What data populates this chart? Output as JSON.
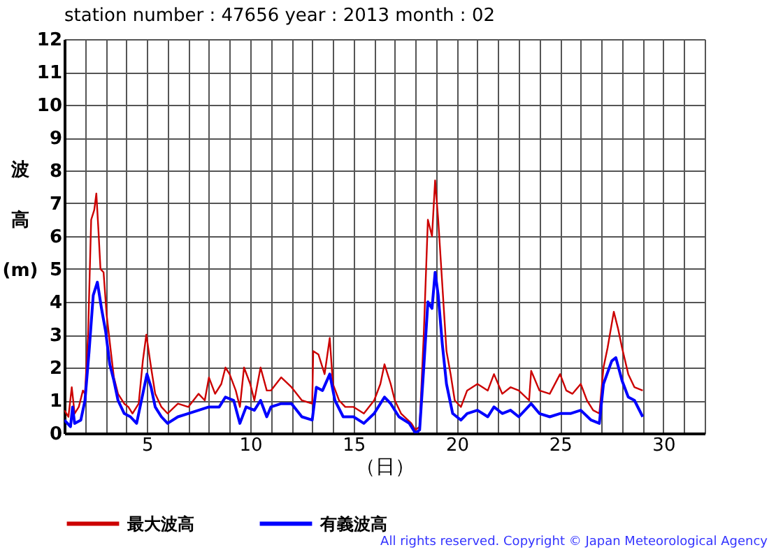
{
  "chart_data": {
    "type": "line",
    "title": "station number : 47656       year : 2013   month : 02",
    "xlabel": "（日）",
    "ylabel": "波高(m)",
    "xlim": [
      1,
      32
    ],
    "xticks": [
      {
        "value": 1,
        "label": null
      },
      {
        "value": 2,
        "label": null
      },
      {
        "value": 3,
        "label": null
      },
      {
        "value": 4,
        "label": null
      },
      5,
      {
        "value": 6,
        "label": null
      },
      {
        "value": 7,
        "label": null
      },
      {
        "value": 8,
        "label": null
      },
      {
        "value": 9,
        "label": null
      },
      10,
      {
        "value": 11,
        "label": null
      },
      {
        "value": 12,
        "label": null
      },
      {
        "value": 13,
        "label": null
      },
      {
        "value": 14,
        "label": null
      },
      15,
      {
        "value": 16,
        "label": null
      },
      {
        "value": 17,
        "label": null
      },
      {
        "value": 18,
        "label": null
      },
      {
        "value": 19,
        "label": null
      },
      20,
      {
        "value": 21,
        "label": null
      },
      {
        "value": 22,
        "label": null
      },
      {
        "value": 23,
        "label": null
      },
      {
        "value": 24,
        "label": null
      },
      25,
      {
        "value": 26,
        "label": null
      },
      {
        "value": 27,
        "label": null
      },
      {
        "value": 28,
        "label": null
      },
      {
        "value": 29,
        "label": null
      },
      30,
      {
        "value": 31,
        "label": null
      },
      {
        "value": 32,
        "label": null
      }
    ],
    "ylim": [
      0,
      12
    ],
    "yticks": [
      0,
      1,
      2,
      3,
      4,
      5,
      6,
      7,
      8,
      9,
      10,
      11,
      12
    ],
    "grid": true,
    "legend": "bottom",
    "line_style": "solid",
    "marker": "none",
    "annotations": [
      "All rights reserved. Copyright © Japan Meteorological Agency"
    ],
    "series": [
      {
        "name": "最大波高",
        "color": "#cc0000",
        "x": [
          1,
          1.2,
          1.36,
          1.5,
          1.7,
          1.9,
          2.0,
          2.15,
          2.3,
          2.45,
          2.55,
          2.65,
          2.75,
          2.9,
          3.05,
          3.25,
          3.4,
          3.6,
          3.9,
          4.1,
          4.3,
          4.6,
          4.8,
          4.97,
          5.2,
          5.4,
          5.7,
          6.0,
          6.5,
          7.0,
          7.5,
          7.8,
          8.0,
          8.3,
          8.6,
          8.8,
          9.0,
          9.3,
          9.5,
          9.7,
          10.0,
          10.2,
          10.5,
          10.8,
          11.0,
          11.5,
          12.0,
          12.5,
          13.0,
          13.05,
          13.3,
          13.6,
          13.85,
          14.0,
          14.3,
          14.6,
          15.0,
          15.5,
          16.0,
          16.3,
          16.5,
          16.8,
          17.0,
          17.3,
          17.8,
          18.0,
          18.2,
          18.4,
          18.6,
          18.8,
          18.95,
          19.1,
          19.3,
          19.5,
          19.7,
          19.9,
          20.2,
          20.5,
          21.0,
          21.5,
          21.8,
          22.2,
          22.6,
          23.0,
          23.5,
          23.6,
          24.0,
          24.5,
          25.0,
          25.3,
          25.6,
          26.0,
          26.3,
          26.6,
          26.9,
          27.1,
          27.3,
          27.6,
          27.8,
          28.0,
          28.3,
          28.6,
          29.0
        ],
        "values": [
          0.7,
          0.5,
          1.4,
          0.6,
          0.8,
          1.3,
          1.2,
          3.0,
          6.5,
          6.8,
          7.3,
          6.2,
          5.0,
          4.9,
          3.6,
          2.5,
          1.7,
          1.2,
          0.9,
          0.8,
          0.6,
          0.9,
          2.2,
          3.0,
          2.0,
          1.2,
          0.8,
          0.6,
          0.9,
          0.8,
          1.2,
          1.0,
          1.7,
          1.2,
          1.5,
          2.0,
          1.8,
          1.3,
          0.8,
          2.0,
          1.5,
          1.0,
          2.0,
          1.3,
          1.3,
          1.7,
          1.4,
          1.0,
          0.9,
          2.5,
          2.4,
          1.8,
          2.9,
          1.5,
          1.0,
          0.8,
          0.8,
          0.6,
          1.0,
          1.5,
          2.1,
          1.5,
          1.0,
          0.6,
          0.3,
          0.1,
          0.2,
          3.0,
          6.5,
          6.0,
          7.7,
          6.5,
          4.5,
          2.5,
          1.8,
          1.0,
          0.8,
          1.3,
          1.5,
          1.3,
          1.8,
          1.2,
          1.4,
          1.3,
          1.0,
          1.9,
          1.3,
          1.2,
          1.8,
          1.3,
          1.2,
          1.5,
          1.0,
          0.7,
          0.6,
          2.0,
          2.6,
          3.7,
          3.2,
          2.6,
          1.8,
          1.4,
          1.3
        ]
      },
      {
        "name": "有義波高",
        "color": "#0000ff",
        "x": [
          1,
          1.3,
          1.4,
          1.5,
          1.8,
          2.0,
          2.2,
          2.4,
          2.6,
          2.8,
          3.0,
          3.2,
          3.4,
          3.6,
          3.9,
          4.2,
          4.5,
          4.8,
          5.0,
          5.2,
          5.4,
          5.7,
          6.0,
          6.5,
          7.0,
          7.5,
          8.0,
          8.5,
          8.8,
          9.2,
          9.5,
          9.8,
          10.2,
          10.5,
          10.8,
          11.0,
          11.5,
          12.0,
          12.5,
          13.0,
          13.2,
          13.5,
          13.85,
          14.1,
          14.5,
          15.0,
          15.5,
          16.0,
          16.5,
          16.8,
          17.2,
          17.7,
          18.0,
          18.2,
          18.4,
          18.6,
          18.8,
          18.95,
          19.1,
          19.3,
          19.5,
          19.8,
          20.2,
          20.5,
          21.0,
          21.5,
          21.8,
          22.2,
          22.6,
          23.0,
          23.6,
          24.0,
          24.5,
          25.0,
          25.5,
          26.0,
          26.5,
          26.9,
          27.1,
          27.5,
          27.7,
          28.0,
          28.3,
          28.6,
          29.0
        ],
        "values": [
          0.4,
          0.2,
          0.8,
          0.3,
          0.4,
          1.0,
          2.5,
          4.2,
          4.6,
          3.8,
          3.1,
          2.1,
          1.6,
          1.0,
          0.6,
          0.5,
          0.3,
          1.2,
          1.8,
          1.4,
          0.8,
          0.5,
          0.3,
          0.5,
          0.6,
          0.7,
          0.8,
          0.8,
          1.1,
          1.0,
          0.3,
          0.8,
          0.7,
          1.0,
          0.5,
          0.8,
          0.9,
          0.9,
          0.5,
          0.4,
          1.4,
          1.3,
          1.8,
          1.0,
          0.5,
          0.5,
          0.3,
          0.6,
          1.1,
          0.9,
          0.5,
          0.3,
          0.0,
          0.1,
          2.0,
          4.0,
          3.8,
          4.9,
          4.2,
          2.7,
          1.5,
          0.6,
          0.4,
          0.6,
          0.7,
          0.5,
          0.8,
          0.6,
          0.7,
          0.5,
          0.9,
          0.6,
          0.5,
          0.6,
          0.6,
          0.7,
          0.4,
          0.3,
          1.5,
          2.2,
          2.3,
          1.6,
          1.1,
          1.0,
          0.5
        ]
      }
    ]
  }
}
